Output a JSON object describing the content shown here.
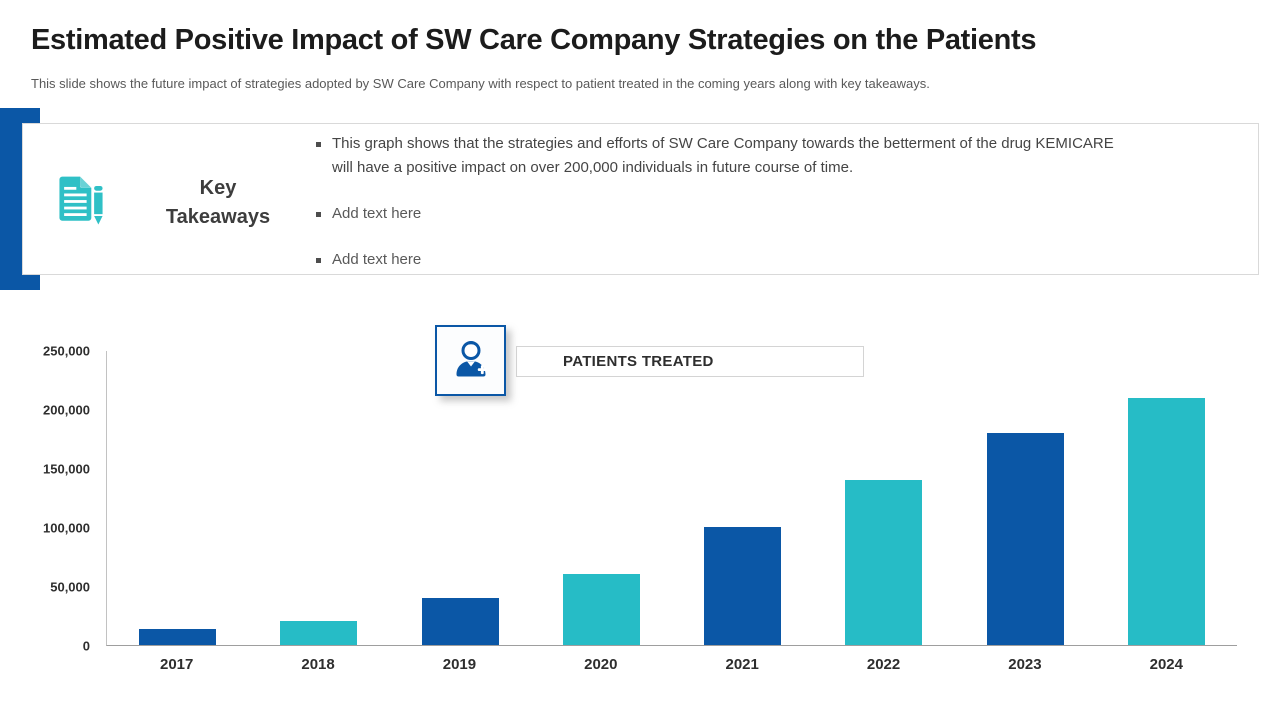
{
  "slide": {
    "title": "Estimated Positive Impact of SW Care Company Strategies on the Patients",
    "subtitle": "This slide shows the future impact of strategies adopted by SW Care Company with respect to patient treated in the coming years along with key takeaways."
  },
  "key_takeaways": {
    "heading_line1": "Key",
    "heading_line2": "Takeaways",
    "icon": "document-pen-icon",
    "bullets": [
      {
        "muted": false,
        "lines": [
          "This graph shows that the strategies and efforts of SW Care Company towards the betterment of the drug KEMICARE",
          "will have a positive impact on over 200,000 individuals in future course of time."
        ]
      },
      {
        "muted": true,
        "lines": [
          "Add text here"
        ]
      },
      {
        "muted": true,
        "lines": [
          "Add text here"
        ]
      }
    ]
  },
  "chart_header": {
    "icon": "add-patient-icon",
    "label": "PATIENTS TREATED"
  },
  "chart_data": {
    "type": "bar",
    "title": "PATIENTS TREATED",
    "categories": [
      "2017",
      "2018",
      "2019",
      "2020",
      "2021",
      "2022",
      "2023",
      "2024"
    ],
    "values": [
      14000,
      20000,
      40000,
      60000,
      100000,
      140000,
      180000,
      210000
    ],
    "bar_colors": [
      "#0B57A6",
      "#26BCC6",
      "#0B57A6",
      "#26BCC6",
      "#0B57A6",
      "#26BCC6",
      "#0B57A6",
      "#26BCC6"
    ],
    "xlabel": "",
    "ylabel": "",
    "ylim": [
      0,
      250000
    ],
    "yticks": [
      0,
      50000,
      100000,
      150000,
      200000,
      250000
    ],
    "ytick_labels": [
      "0",
      "50,000",
      "100,000",
      "150,000",
      "200,000",
      "250,000"
    ],
    "grid": false,
    "legend_position": "none"
  },
  "colors": {
    "dark_blue": "#0B57A6",
    "teal": "#26BCC6",
    "title_text": "#1c1c1c",
    "muted_text": "#595959",
    "axis_line": "#9e9e9e",
    "border_light": "#d9d9d9"
  }
}
